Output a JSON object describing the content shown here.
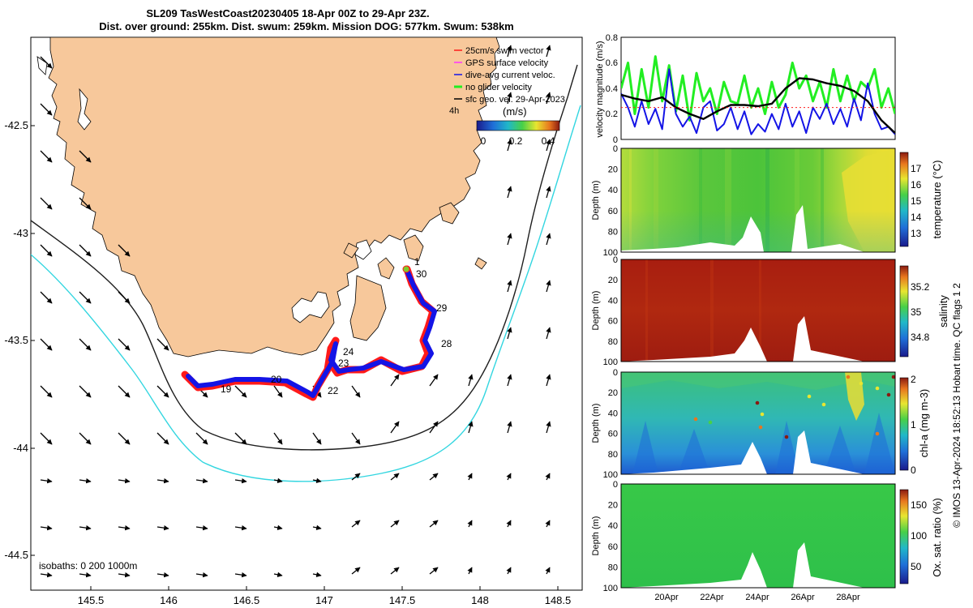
{
  "title_line1": "SL209 TasWestCoast20230405 18-Apr 00Z to 29-Apr 23Z.",
  "title_line2": "Dist. over ground: 255km. Dist. swum: 259km. Mission DOG: 577km. Swum: 538km",
  "colors": {
    "land": "#f7c89b",
    "sea": "#ffffff",
    "track_red": "#ff1a1a",
    "track_blue": "#1414e6",
    "iso200": "#1e1e1e",
    "iso1000": "#33d6e0",
    "vel_green": "#22ee22",
    "vel_black": "#000000"
  },
  "map": {
    "lon_ticks": [
      "145.5",
      "146",
      "146.5",
      "147",
      "147.5",
      "148",
      "148.5"
    ],
    "lat_ticks": [
      "-42.5",
      "-43",
      "-43.5",
      "-44",
      "-44.5"
    ],
    "isobaths_label": "isobaths: 0   200  1000m",
    "day_labels": [
      "1",
      "30",
      "29",
      "28",
      "24",
      "23",
      "22",
      "20",
      "19"
    ],
    "legend": [
      {
        "label": "25cm/s swim vector",
        "color": "#ff1a1a"
      },
      {
        "label": "GPS surface velocity",
        "color": "#ff33ff"
      },
      {
        "label": "dive-avg current veloc.",
        "color": "#1414e6"
      },
      {
        "label": "no glider velocity",
        "color": "#22ee22"
      },
      {
        "label": "sfc geo. vel. 29-Apr-2023",
        "color": "#000000"
      }
    ],
    "colorbar": {
      "title": "(m/s)",
      "ticks": [
        "0",
        "0.2",
        "0.4"
      ],
      "side_label": "4h"
    }
  },
  "chart_data": [
    {
      "type": "line",
      "title": "velocity magnitude",
      "xlabel": "",
      "ylabel": "velocity magnitude (m/s)",
      "ylim": [
        0,
        0.8
      ],
      "y_ticks": [
        "0",
        "0.2",
        "0.4",
        "0.6",
        "0.8"
      ],
      "xlim": [
        18,
        30
      ],
      "series": [
        {
          "name": "dive-avg current veloc.",
          "color": "#1414e6",
          "x": [
            18.0,
            18.3,
            18.6,
            18.9,
            19.2,
            19.5,
            19.8,
            20.1,
            20.4,
            20.7,
            21.0,
            21.3,
            21.6,
            21.9,
            22.2,
            22.5,
            22.8,
            23.1,
            23.4,
            23.7,
            24.0,
            24.3,
            24.6,
            24.9,
            25.2,
            25.5,
            25.8,
            26.1,
            26.4,
            26.7,
            27.0,
            27.3,
            27.6,
            27.9,
            28.2,
            28.5,
            28.8,
            29.1,
            29.4,
            29.7,
            30.0
          ],
          "values": [
            0.36,
            0.25,
            0.1,
            0.3,
            0.12,
            0.24,
            0.08,
            0.55,
            0.2,
            0.1,
            0.18,
            0.05,
            0.25,
            0.3,
            0.07,
            0.12,
            0.25,
            0.08,
            0.22,
            0.04,
            0.12,
            0.06,
            0.2,
            0.08,
            0.28,
            0.1,
            0.22,
            0.05,
            0.25,
            0.16,
            0.28,
            0.12,
            0.24,
            0.1,
            0.32,
            0.15,
            0.44,
            0.2,
            0.08,
            0.1,
            0.04
          ]
        },
        {
          "name": "sfc geo. vel.",
          "color": "#000000",
          "x": [
            18.0,
            18.6,
            19.2,
            19.8,
            20.4,
            21.0,
            21.6,
            22.2,
            22.8,
            23.4,
            24.0,
            24.6,
            25.2,
            25.8,
            26.4,
            27.0,
            27.6,
            28.2,
            28.8,
            29.4,
            30.0
          ],
          "values": [
            0.35,
            0.32,
            0.3,
            0.33,
            0.25,
            0.2,
            0.16,
            0.22,
            0.27,
            0.27,
            0.26,
            0.28,
            0.4,
            0.48,
            0.47,
            0.44,
            0.42,
            0.38,
            0.3,
            0.15,
            0.05
          ]
        },
        {
          "name": "no glider velocity",
          "color": "#22ee22",
          "x": [
            18.0,
            18.3,
            18.6,
            18.9,
            19.2,
            19.5,
            19.8,
            20.1,
            20.4,
            20.7,
            21.0,
            21.3,
            21.6,
            21.9,
            22.2,
            22.5,
            22.8,
            23.1,
            23.4,
            23.7,
            24.0,
            24.3,
            24.6,
            24.9,
            25.2,
            25.5,
            25.8,
            26.1,
            26.4,
            26.7,
            27.0,
            27.3,
            27.6,
            27.9,
            28.2,
            28.5,
            28.8,
            29.1,
            29.4,
            29.7,
            30.0
          ],
          "values": [
            0.4,
            0.6,
            0.2,
            0.55,
            0.25,
            0.65,
            0.3,
            0.58,
            0.22,
            0.5,
            0.15,
            0.52,
            0.3,
            0.4,
            0.2,
            0.45,
            0.3,
            0.28,
            0.5,
            0.25,
            0.4,
            0.2,
            0.45,
            0.25,
            0.35,
            0.6,
            0.4,
            0.5,
            0.3,
            0.45,
            0.25,
            0.55,
            0.3,
            0.5,
            0.3,
            0.45,
            0.4,
            0.55,
            0.25,
            0.4,
            0.2
          ]
        }
      ]
    },
    {
      "type": "heatmap",
      "title": "temperature",
      "ylabel": "Depth (m)",
      "colorbar_label": "temperature (°C)",
      "colorbar_ticks": [
        "13",
        "14",
        "15",
        "16",
        "17"
      ],
      "clim": [
        12.3,
        17.8
      ],
      "ylim": [
        0,
        100
      ],
      "y_ticks": [
        "0",
        "20",
        "40",
        "60",
        "80",
        "100"
      ]
    },
    {
      "type": "heatmap",
      "title": "salinity",
      "ylabel": "Depth (m)",
      "colorbar_label": "salinity",
      "colorbar_ticks": [
        "34.8",
        "35",
        "35.2"
      ],
      "clim": [
        34.7,
        35.3
      ],
      "ylim": [
        0,
        100
      ],
      "y_ticks": [
        "0",
        "20",
        "40",
        "60",
        "80",
        "100"
      ]
    },
    {
      "type": "heatmap",
      "title": "chl-a",
      "ylabel": "Depth (m)",
      "colorbar_label": "chl-a (mg m-3)",
      "colorbar_ticks": [
        "0",
        "1",
        "2"
      ],
      "clim": [
        0,
        2
      ],
      "ylim": [
        0,
        100
      ],
      "y_ticks": [
        "0",
        "20",
        "40",
        "60",
        "80",
        "100"
      ]
    },
    {
      "type": "heatmap",
      "title": "Ox. sat. ratio",
      "ylabel": "Depth (m)",
      "colorbar_label": "Ox. sat. ratio (%)",
      "colorbar_ticks": [
        "50",
        "100",
        "150"
      ],
      "clim": [
        25,
        175
      ],
      "ylim": [
        0,
        100
      ],
      "y_ticks": [
        "0",
        "20",
        "40",
        "60",
        "80",
        "100"
      ],
      "x_ticks": [
        "20Apr",
        "22Apr",
        "24Apr",
        "26Apr",
        "28Apr"
      ]
    }
  ],
  "side_credit": "© IMOS 13-Apr-2024 18:52:13 Hobart time. QC flags 1  2"
}
